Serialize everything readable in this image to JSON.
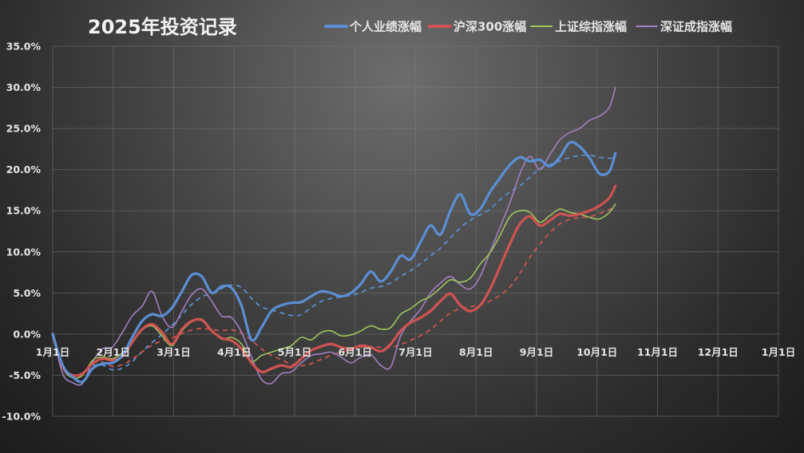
{
  "chart_data": {
    "type": "line",
    "title": "2025年投资记录",
    "xlabel": "",
    "ylabel": "",
    "x_tick_labels": [
      "1月1日",
      "2月1日",
      "3月1日",
      "4月1日",
      "5月1日",
      "6月1日",
      "7月1日",
      "8月1日",
      "9月1日",
      "10月1日",
      "11月1日",
      "12月1日",
      "1月1日"
    ],
    "x_range_days": [
      0,
      365
    ],
    "y_tick_labels": [
      "35.0%",
      "30.0%",
      "25.0%",
      "20.0%",
      "15.0%",
      "10.0%",
      "5.0%",
      "0.0%",
      "-5.0%",
      "-10.0%"
    ],
    "ylim": [
      -10,
      35
    ],
    "y_unit": "%",
    "grid": true,
    "legend_position": "top",
    "series": [
      {
        "name": "个人业绩涨幅",
        "color": "#5b8fd4",
        "points": [
          [
            0,
            0
          ],
          [
            5,
            -3.8
          ],
          [
            10,
            -5.2
          ],
          [
            15,
            -5.8
          ],
          [
            20,
            -4.2
          ],
          [
            25,
            -3.6
          ],
          [
            30,
            -3.5
          ],
          [
            35,
            -2.6
          ],
          [
            40,
            -0.4
          ],
          [
            45,
            1.6
          ],
          [
            50,
            2.4
          ],
          [
            55,
            2.2
          ],
          [
            60,
            3.2
          ],
          [
            65,
            5.2
          ],
          [
            70,
            7.2
          ],
          [
            75,
            7.0
          ],
          [
            80,
            5.0
          ],
          [
            85,
            5.8
          ],
          [
            90,
            5.6
          ],
          [
            95,
            3.4
          ],
          [
            100,
            -0.7
          ],
          [
            105,
            0.8
          ],
          [
            110,
            2.8
          ],
          [
            115,
            3.5
          ],
          [
            120,
            3.8
          ],
          [
            125,
            3.9
          ],
          [
            130,
            4.6
          ],
          [
            135,
            5.2
          ],
          [
            140,
            5.0
          ],
          [
            145,
            4.6
          ],
          [
            150,
            5.0
          ],
          [
            155,
            6.1
          ],
          [
            160,
            7.6
          ],
          [
            165,
            6.4
          ],
          [
            170,
            7.6
          ],
          [
            175,
            9.5
          ],
          [
            180,
            9.1
          ],
          [
            185,
            11.2
          ],
          [
            190,
            13.2
          ],
          [
            195,
            12.1
          ],
          [
            200,
            15.0
          ],
          [
            205,
            17.0
          ],
          [
            210,
            14.6
          ],
          [
            215,
            15.2
          ],
          [
            220,
            17.3
          ],
          [
            225,
            19.0
          ],
          [
            230,
            20.6
          ],
          [
            235,
            21.5
          ],
          [
            240,
            21.0
          ],
          [
            245,
            21.2
          ],
          [
            250,
            20.4
          ],
          [
            255,
            21.5
          ],
          [
            260,
            23.3
          ],
          [
            265,
            22.8
          ],
          [
            270,
            21.4
          ],
          [
            275,
            19.5
          ],
          [
            280,
            19.8
          ],
          [
            283,
            22.0
          ]
        ]
      },
      {
        "name": "沪深300涨幅",
        "color": "#cf5350",
        "points": [
          [
            0,
            0
          ],
          [
            5,
            -4.0
          ],
          [
            10,
            -5.0
          ],
          [
            15,
            -4.8
          ],
          [
            20,
            -3.6
          ],
          [
            25,
            -3.0
          ],
          [
            30,
            -3.2
          ],
          [
            35,
            -2.7
          ],
          [
            40,
            -1.0
          ],
          [
            45,
            0.6
          ],
          [
            50,
            1.2
          ],
          [
            55,
            0.2
          ],
          [
            60,
            -1.2
          ],
          [
            65,
            0.6
          ],
          [
            70,
            1.6
          ],
          [
            75,
            1.7
          ],
          [
            80,
            0.4
          ],
          [
            85,
            -0.5
          ],
          [
            90,
            -0.8
          ],
          [
            95,
            -1.8
          ],
          [
            100,
            -3.5
          ],
          [
            105,
            -4.6
          ],
          [
            110,
            -4.2
          ],
          [
            115,
            -3.8
          ],
          [
            120,
            -4.0
          ],
          [
            125,
            -3.0
          ],
          [
            130,
            -2.0
          ],
          [
            135,
            -1.5
          ],
          [
            140,
            -1.2
          ],
          [
            145,
            -1.6
          ],
          [
            150,
            -1.8
          ],
          [
            155,
            -1.4
          ],
          [
            160,
            -1.6
          ],
          [
            165,
            -2.1
          ],
          [
            170,
            -1.2
          ],
          [
            175,
            0.4
          ],
          [
            180,
            1.4
          ],
          [
            185,
            2.0
          ],
          [
            190,
            2.8
          ],
          [
            195,
            4.0
          ],
          [
            200,
            4.9
          ],
          [
            205,
            3.5
          ],
          [
            210,
            2.8
          ],
          [
            215,
            3.5
          ],
          [
            220,
            5.5
          ],
          [
            225,
            8.2
          ],
          [
            230,
            11.0
          ],
          [
            235,
            13.4
          ],
          [
            240,
            14.3
          ],
          [
            245,
            13.2
          ],
          [
            250,
            13.8
          ],
          [
            255,
            14.6
          ],
          [
            260,
            14.4
          ],
          [
            265,
            14.6
          ],
          [
            270,
            15.0
          ],
          [
            275,
            15.6
          ],
          [
            280,
            16.6
          ],
          [
            283,
            18.0
          ]
        ]
      },
      {
        "name": "上证综指涨幅",
        "color": "#9fc45c",
        "points": [
          [
            0,
            0
          ],
          [
            5,
            -4.1
          ],
          [
            10,
            -5.3
          ],
          [
            15,
            -5.0
          ],
          [
            20,
            -3.2
          ],
          [
            25,
            -2.8
          ],
          [
            30,
            -3.0
          ],
          [
            35,
            -2.3
          ],
          [
            40,
            -1.0
          ],
          [
            45,
            0.5
          ],
          [
            50,
            1.0
          ],
          [
            55,
            -0.2
          ],
          [
            60,
            -1.4
          ],
          [
            65,
            0.4
          ],
          [
            70,
            1.5
          ],
          [
            75,
            1.8
          ],
          [
            80,
            0.5
          ],
          [
            85,
            -0.6
          ],
          [
            90,
            -0.4
          ],
          [
            95,
            -1.2
          ],
          [
            100,
            -3.3
          ],
          [
            105,
            -2.6
          ],
          [
            110,
            -2.2
          ],
          [
            115,
            -1.8
          ],
          [
            120,
            -1.4
          ],
          [
            125,
            -0.4
          ],
          [
            130,
            -0.7
          ],
          [
            135,
            0.2
          ],
          [
            140,
            0.4
          ],
          [
            145,
            -0.2
          ],
          [
            150,
            -0.1
          ],
          [
            155,
            0.4
          ],
          [
            160,
            1.0
          ],
          [
            165,
            0.6
          ],
          [
            170,
            0.8
          ],
          [
            175,
            2.4
          ],
          [
            180,
            3.1
          ],
          [
            185,
            4.0
          ],
          [
            190,
            4.6
          ],
          [
            195,
            5.6
          ],
          [
            200,
            6.6
          ],
          [
            205,
            6.3
          ],
          [
            210,
            6.8
          ],
          [
            215,
            8.5
          ],
          [
            220,
            9.9
          ],
          [
            225,
            12.0
          ],
          [
            230,
            14.3
          ],
          [
            235,
            15.0
          ],
          [
            240,
            14.8
          ],
          [
            245,
            13.6
          ],
          [
            250,
            14.4
          ],
          [
            255,
            15.2
          ],
          [
            260,
            14.8
          ],
          [
            265,
            14.6
          ],
          [
            270,
            14.2
          ],
          [
            275,
            14.0
          ],
          [
            280,
            14.8
          ],
          [
            283,
            15.8
          ]
        ]
      },
      {
        "name": "深证成指涨幅",
        "color": "#a27fc0",
        "points": [
          [
            0,
            0
          ],
          [
            5,
            -4.8
          ],
          [
            10,
            -5.9
          ],
          [
            15,
            -6.0
          ],
          [
            20,
            -3.4
          ],
          [
            25,
            -1.8
          ],
          [
            30,
            -1.6
          ],
          [
            35,
            0.2
          ],
          [
            40,
            2.2
          ],
          [
            45,
            3.4
          ],
          [
            50,
            5.2
          ],
          [
            55,
            2.2
          ],
          [
            60,
            0.8
          ],
          [
            65,
            2.8
          ],
          [
            70,
            4.8
          ],
          [
            75,
            5.5
          ],
          [
            80,
            4.0
          ],
          [
            85,
            2.2
          ],
          [
            90,
            2.0
          ],
          [
            95,
            0.2
          ],
          [
            100,
            -2.8
          ],
          [
            105,
            -5.5
          ],
          [
            110,
            -6.0
          ],
          [
            115,
            -4.8
          ],
          [
            120,
            -4.6
          ],
          [
            125,
            -3.5
          ],
          [
            130,
            -2.6
          ],
          [
            135,
            -2.4
          ],
          [
            140,
            -2.2
          ],
          [
            145,
            -2.8
          ],
          [
            150,
            -3.5
          ],
          [
            155,
            -2.8
          ],
          [
            160,
            -2.5
          ],
          [
            165,
            -3.8
          ],
          [
            170,
            -4.0
          ],
          [
            175,
            -0.2
          ],
          [
            180,
            1.6
          ],
          [
            185,
            3.0
          ],
          [
            190,
            5.0
          ],
          [
            195,
            6.2
          ],
          [
            200,
            7.0
          ],
          [
            205,
            6.0
          ],
          [
            210,
            5.5
          ],
          [
            215,
            7.0
          ],
          [
            220,
            10.0
          ],
          [
            225,
            13.0
          ],
          [
            230,
            16.0
          ],
          [
            235,
            19.5
          ],
          [
            240,
            21.6
          ],
          [
            245,
            20.0
          ],
          [
            250,
            21.8
          ],
          [
            255,
            23.6
          ],
          [
            260,
            24.5
          ],
          [
            265,
            25.0
          ],
          [
            270,
            26.0
          ],
          [
            275,
            26.5
          ],
          [
            280,
            27.6
          ],
          [
            283,
            30.0
          ]
        ]
      }
    ]
  }
}
